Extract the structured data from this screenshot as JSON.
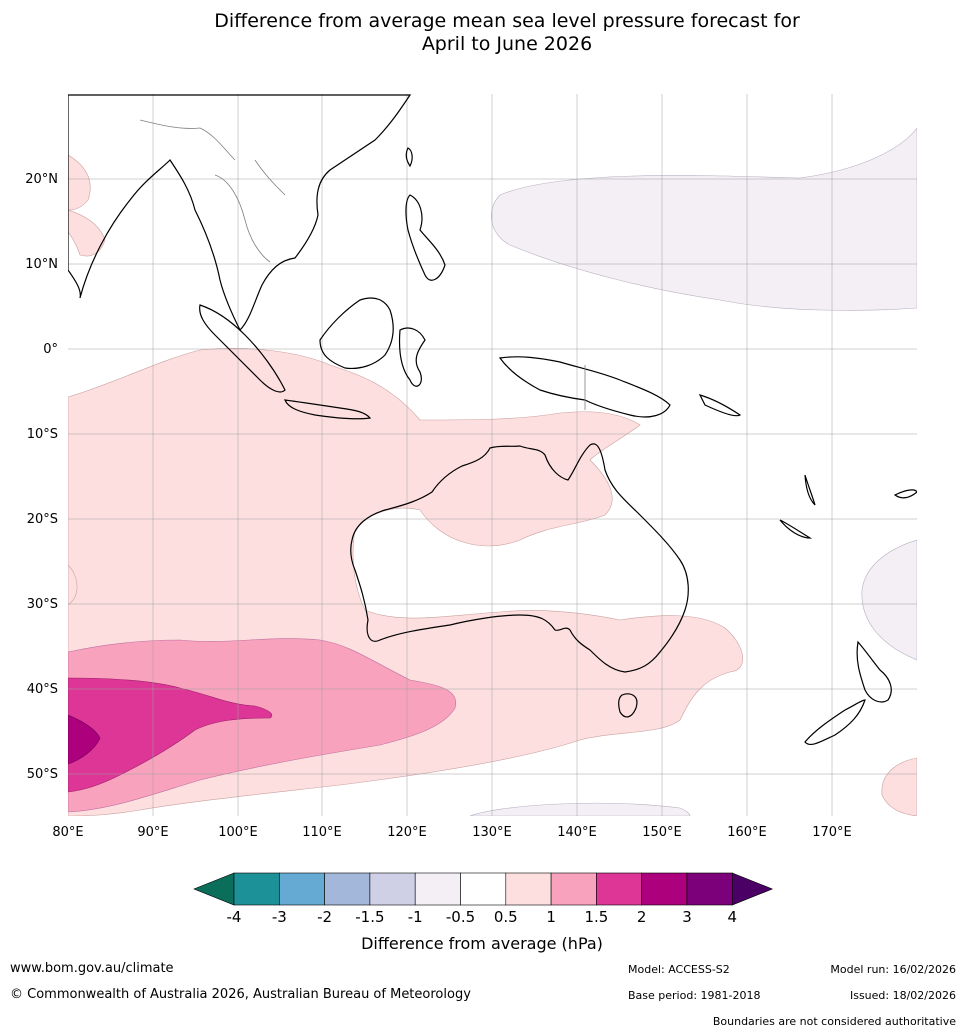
{
  "title": {
    "line1": "Difference from average mean sea level pressure forecast for",
    "line2": "April to June 2026"
  },
  "map": {
    "lon_labels": [
      "80°E",
      "90°E",
      "100°E",
      "110°E",
      "120°E",
      "130°E",
      "140°E",
      "150°E",
      "160°E",
      "170°E"
    ],
    "lat_labels": [
      "20°N",
      "10°N",
      "0°",
      "10°S",
      "20°S",
      "30°S",
      "40°S",
      "50°S"
    ],
    "lon_range": [
      80,
      180
    ],
    "lat_range": [
      -55,
      30
    ],
    "regions": [
      "Positive anomaly (0.5 to 1 hPa) over Indian Ocean, Indonesia and southern Australia",
      "Strong positive anomaly (1.5 to 2+ hPa) in Southern Indian Ocean near 40-50°S",
      "Slight negative anomaly (-1 to -0.5 hPa) in western North Pacific"
    ]
  },
  "colorbar": {
    "title": "Difference from average (hPa)",
    "tick_labels": [
      "-4",
      "-3",
      "-2",
      "-1.5",
      "-1",
      "-0.5",
      "0.5",
      "1",
      "1.5",
      "2",
      "3",
      "4"
    ],
    "colors": [
      "#0b6e5b",
      "#1c9198",
      "#64aad3",
      "#a2b7da",
      "#cfd0e6",
      "#f3eff5",
      "#ffffff",
      "#fddfe0",
      "#f8a2bd",
      "#dd3696",
      "#ad007d",
      "#7b0079",
      "#4a0064"
    ]
  },
  "footer": {
    "url": "www.bom.gov.au/climate",
    "copyright": "© Commonwealth of Australia 2026, Australian Bureau of Meteorology",
    "model": "Model: ACCESS-S2",
    "base_period": "Base period: 1981-2018",
    "model_run": "Model run: 16/02/2026",
    "issued": "Issued: 18/02/2026",
    "disclaimer": "Boundaries are not considered authoritative"
  }
}
